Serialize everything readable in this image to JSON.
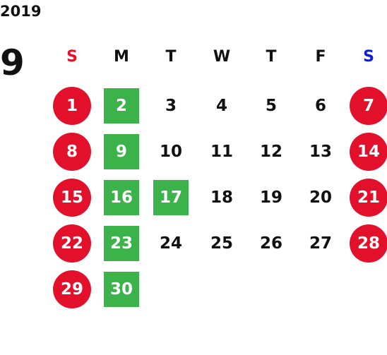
{
  "year": "2019",
  "month": "9",
  "weekdays": [
    {
      "label": "S",
      "color": "#e8102a"
    },
    {
      "label": "M",
      "color": "#111111"
    },
    {
      "label": "T",
      "color": "#111111"
    },
    {
      "label": "W",
      "color": "#111111"
    },
    {
      "label": "T",
      "color": "#111111"
    },
    {
      "label": "F",
      "color": "#111111"
    },
    {
      "label": "S",
      "color": "#1020d0"
    }
  ],
  "mark_styles": {
    "red-circle": "#e3102b",
    "green-square": "#3bb34a"
  },
  "weeks": [
    [
      {
        "day": 1,
        "mark": "red-circle"
      },
      {
        "day": 2,
        "mark": "green-square"
      },
      {
        "day": 3
      },
      {
        "day": 4
      },
      {
        "day": 5
      },
      {
        "day": 6
      },
      {
        "day": 7,
        "mark": "red-circle"
      }
    ],
    [
      {
        "day": 8,
        "mark": "red-circle"
      },
      {
        "day": 9,
        "mark": "green-square"
      },
      {
        "day": 10
      },
      {
        "day": 11
      },
      {
        "day": 12
      },
      {
        "day": 13
      },
      {
        "day": 14,
        "mark": "red-circle"
      }
    ],
    [
      {
        "day": 15,
        "mark": "red-circle"
      },
      {
        "day": 16,
        "mark": "green-square"
      },
      {
        "day": 17,
        "mark": "green-square"
      },
      {
        "day": 18
      },
      {
        "day": 19
      },
      {
        "day": 20
      },
      {
        "day": 21,
        "mark": "red-circle"
      }
    ],
    [
      {
        "day": 22,
        "mark": "red-circle"
      },
      {
        "day": 23,
        "mark": "green-square"
      },
      {
        "day": 24
      },
      {
        "day": 25
      },
      {
        "day": 26
      },
      {
        "day": 27
      },
      {
        "day": 28,
        "mark": "red-circle"
      }
    ],
    [
      {
        "day": 29,
        "mark": "red-circle"
      },
      {
        "day": 30,
        "mark": "green-square"
      },
      null,
      null,
      null,
      null,
      null
    ]
  ]
}
